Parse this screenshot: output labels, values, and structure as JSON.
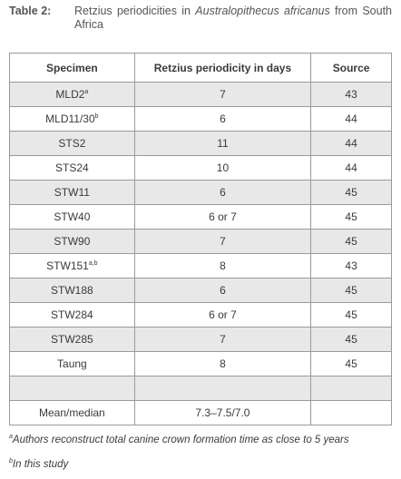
{
  "caption": {
    "label": "Table 2:",
    "text_before": "Retzius periodicities in",
    "taxon": "Australopithecus africanus",
    "text_after": "from South Africa"
  },
  "table": {
    "headers": [
      "Specimen",
      "Retzius periodicity in days",
      "Source"
    ],
    "rows": [
      {
        "specimen": "MLD2",
        "sup": "a",
        "periodicity": 7,
        "source": 43
      },
      {
        "specimen": "MLD11/30",
        "sup": "b",
        "periodicity": 6,
        "source": 44
      },
      {
        "specimen": "STS2",
        "periodicity": 11,
        "source": 44
      },
      {
        "specimen": "STS24",
        "periodicity": 10,
        "source": 44
      },
      {
        "specimen": "STW11",
        "periodicity": 6,
        "source": 45
      },
      {
        "specimen": "STW40",
        "periodicity": "6 or 7",
        "source": 45
      },
      {
        "specimen": "STW90",
        "periodicity": 7,
        "source": 45
      },
      {
        "specimen": "STW151",
        "sup": "a,b",
        "periodicity": 8,
        "source": 43
      },
      {
        "specimen": "STW188",
        "periodicity": 6,
        "source": 45
      },
      {
        "specimen": "STW284",
        "periodicity": "6 or 7",
        "source": 45
      },
      {
        "specimen": "STW285",
        "periodicity": 7,
        "source": 45
      },
      {
        "specimen": "Taung",
        "periodicity": 8,
        "source": 45
      }
    ],
    "summary": {
      "specimen": "Mean/median",
      "periodicity": "7.3–7.5/7.0"
    }
  },
  "footnotes": [
    {
      "mark": "a",
      "text": "Authors reconstruct total canine crown formation time as close to 5 years"
    },
    {
      "mark": "b",
      "text": "In this study"
    }
  ]
}
